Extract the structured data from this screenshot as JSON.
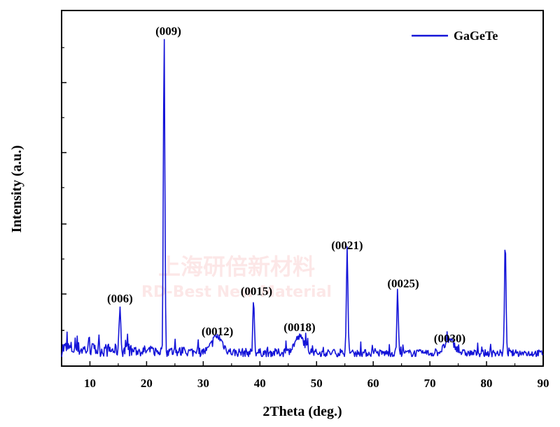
{
  "chart_data": {
    "type": "line",
    "xlabel": "2Theta (deg.)",
    "ylabel": "Intensity (a.u.)",
    "xlim": [
      5,
      90
    ],
    "ylim": [
      0,
      100
    ],
    "x_ticks": [
      10,
      20,
      30,
      40,
      50,
      60,
      70,
      80,
      90
    ],
    "y_ticks_labeled": false,
    "grid": false,
    "legend_position": "top-right",
    "color": "#1414d8",
    "series": [
      {
        "name": "GaGeTe",
        "color": "#1414d8"
      }
    ],
    "peaks": [
      {
        "label": "(006)",
        "x": 15.3,
        "y": 15.5
      },
      {
        "label": "(009)",
        "x": 23.1,
        "y": 100
      },
      {
        "label": "(0012)",
        "x": 32.5,
        "y": 5
      },
      {
        "label": "(0015)",
        "x": 38.9,
        "y": 17
      },
      {
        "label": "(0018)",
        "x": 47.0,
        "y": 5
      },
      {
        "label": "(0021)",
        "x": 55.4,
        "y": 33
      },
      {
        "label": "(0025)",
        "x": 64.3,
        "y": 19
      },
      {
        "label": "(0030)",
        "x": 73.5,
        "y": 4
      },
      {
        "label": "",
        "x": 83.3,
        "y": 36
      }
    ],
    "watermark": {
      "line1": "上海研倍新材料",
      "line2": "RD-Best New Material"
    }
  }
}
